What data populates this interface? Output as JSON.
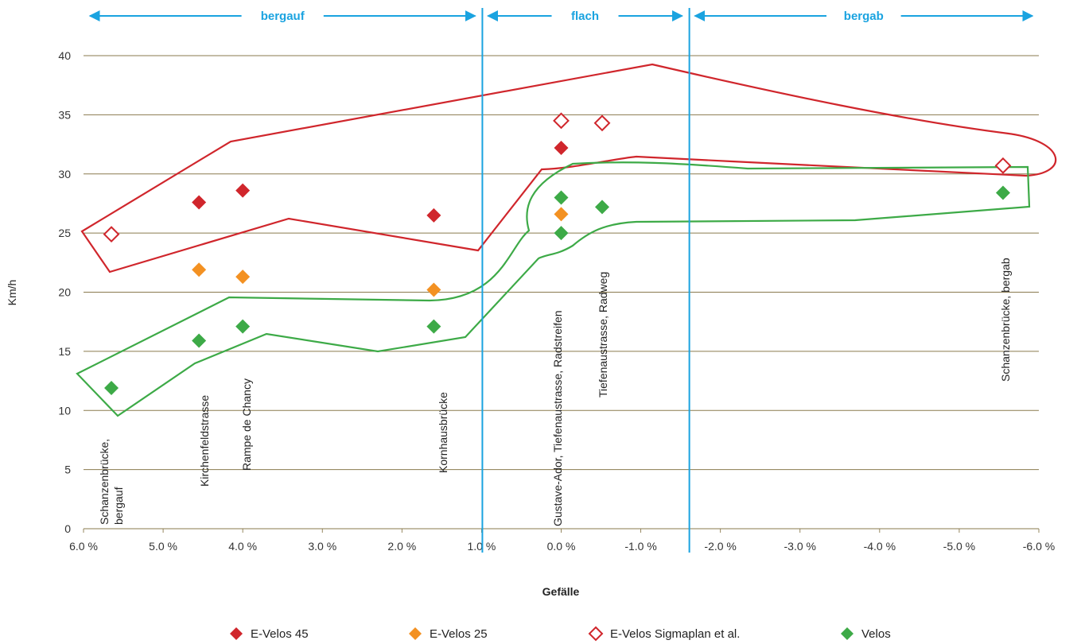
{
  "chart_data": {
    "type": "scatter",
    "title": "",
    "xlabel": "Gefälle",
    "ylabel": "Km/h",
    "xlim": [
      6.0,
      -6.0
    ],
    "ylim": [
      0,
      40
    ],
    "grid": true,
    "legend_position": "bottom",
    "x_tick_labels": [
      "6.0 %",
      "5.0 %",
      "4.0 %",
      "3.0 %",
      "2.0 %",
      "1.0 %",
      "0.0 %",
      "-1.0 %",
      "-2.0 %",
      "-3.0 %",
      "-4.0 %",
      "-5.0 %",
      "-6.0 %"
    ],
    "x_tick_values": [
      6,
      5,
      4,
      3,
      2,
      1,
      0,
      -1,
      -2,
      -3,
      -4,
      -5,
      -6
    ],
    "y_tick_labels": [
      "0",
      "5",
      "10",
      "15",
      "20",
      "25",
      "30",
      "35",
      "40"
    ],
    "y_tick_values": [
      0,
      5,
      10,
      15,
      20,
      25,
      30,
      35,
      40
    ],
    "regions": [
      {
        "label": "bergauf",
        "from": 6.0,
        "to": 1.0
      },
      {
        "label": "flach",
        "from": 1.0,
        "to": -1.6
      },
      {
        "label": "bergab",
        "from": -1.6,
        "to": -6.0
      }
    ],
    "dividers": [
      0.99,
      -1.61
    ],
    "location_labels": [
      {
        "lines": [
          "Schanzenbrücke,",
          "bergauf"
        ],
        "x": 5.65
      },
      {
        "lines": [
          "Kirchenfeldstrasse"
        ],
        "x": 4.55
      },
      {
        "lines": [
          "Rampe de Chancy"
        ],
        "x": 4.0
      },
      {
        "lines": [
          "Kornhausbrücke"
        ],
        "x": 1.6
      },
      {
        "lines": [
          "Gustave-Ador, Tiefenaustrasse, Radstreifen"
        ],
        "x": 0.0
      },
      {
        "lines": [
          "Tiefenaustrasse, Radweg"
        ],
        "x": -0.6
      },
      {
        "lines": [
          "Schanzenbrücke, bergab"
        ],
        "x": -5.55
      }
    ],
    "series": [
      {
        "name": "E-Velos 45",
        "color": "#d0262c",
        "marker": "diamond-filled",
        "points": [
          [
            4.55,
            27.6
          ],
          [
            4.0,
            28.6
          ],
          [
            1.6,
            26.5
          ],
          [
            0.0,
            32.2
          ]
        ]
      },
      {
        "name": "E-Velos 25",
        "color": "#f39122",
        "marker": "diamond-filled",
        "points": [
          [
            4.55,
            21.9
          ],
          [
            4.0,
            21.3
          ],
          [
            1.6,
            20.2
          ],
          [
            0.0,
            26.6
          ]
        ]
      },
      {
        "name": "E-Velos Sigmaplan et al.",
        "color": "#d0262c",
        "marker": "diamond-open",
        "points": [
          [
            5.65,
            24.9
          ],
          [
            0.0,
            34.5
          ],
          [
            -0.6,
            34.3
          ],
          [
            -5.55,
            30.7
          ]
        ]
      },
      {
        "name": "Velos",
        "color": "#3daa47",
        "marker": "diamond-filled",
        "points": [
          [
            5.65,
            11.9
          ],
          [
            4.55,
            15.9
          ],
          [
            4.0,
            17.1
          ],
          [
            1.6,
            17.1
          ],
          [
            0.0,
            28.0
          ],
          [
            0.0,
            25.0
          ],
          [
            -0.6,
            27.2
          ],
          [
            -5.55,
            28.4
          ]
        ]
      }
    ],
    "envelopes": [
      {
        "series": "E-Velos",
        "color": "#d0262c"
      },
      {
        "series": "Velos",
        "color": "#3daa47"
      }
    ]
  },
  "colors": {
    "grid": "#8a7a4e",
    "divider": "#1aa3e0",
    "region": "#1aa3e0"
  }
}
